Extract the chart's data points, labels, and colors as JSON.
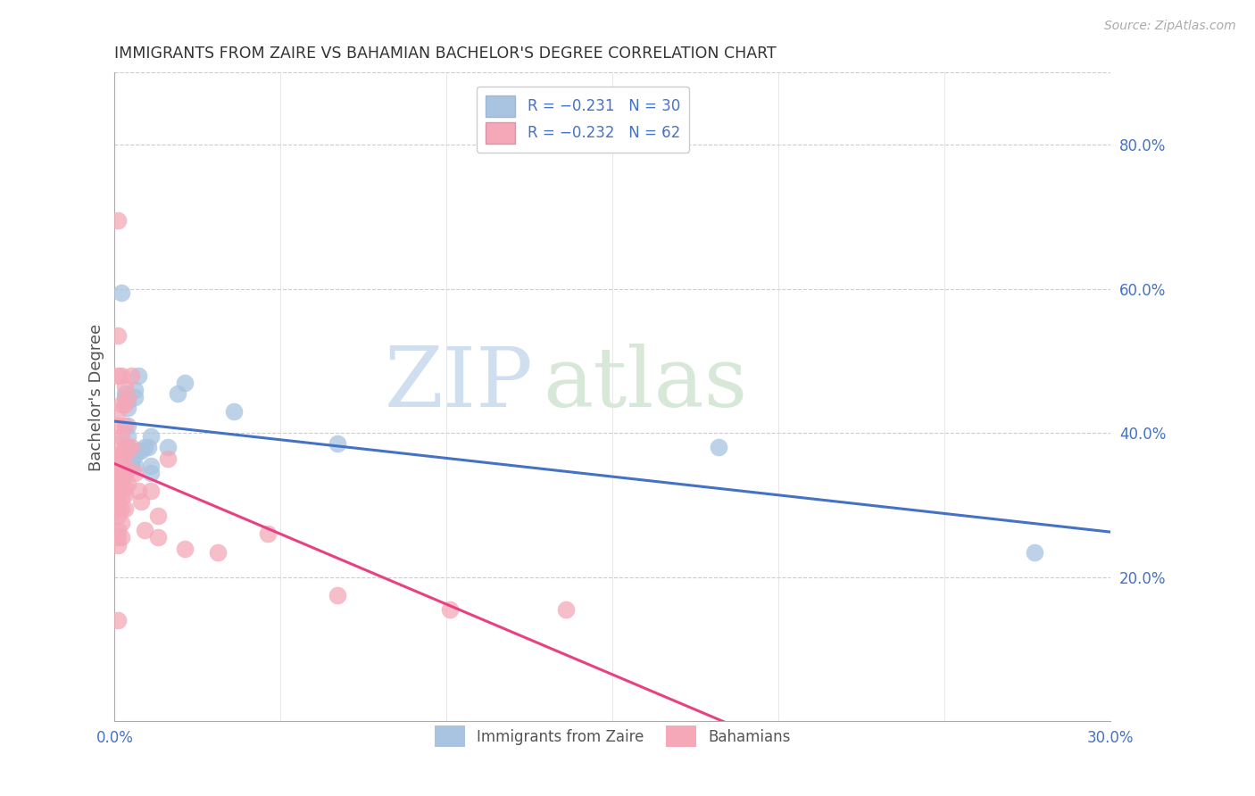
{
  "title": "IMMIGRANTS FROM ZAIRE VS BAHAMIAN BACHELOR'S DEGREE CORRELATION CHART",
  "source": "Source: ZipAtlas.com",
  "ylabel": "Bachelor's Degree",
  "right_yticks": [
    20.0,
    40.0,
    60.0,
    80.0
  ],
  "legend_blue_label": "R = -0.231   N = 30",
  "legend_pink_label": "R = -0.232   N = 62",
  "legend_series_blue": "Immigrants from Zaire",
  "legend_series_pink": "Bahamians",
  "blue_color": "#A8C4E0",
  "pink_color": "#F4A8B8",
  "blue_line_color": "#4472C4",
  "pink_line_color": "#E84080",
  "blue_scatter": [
    [
      0.002,
      59.5
    ],
    [
      0.003,
      45.5
    ],
    [
      0.003,
      45.0
    ],
    [
      0.004,
      44.5
    ],
    [
      0.004,
      43.5
    ],
    [
      0.004,
      41.0
    ],
    [
      0.004,
      39.5
    ],
    [
      0.005,
      37.5
    ],
    [
      0.005,
      37.0
    ],
    [
      0.005,
      36.0
    ],
    [
      0.005,
      35.5
    ],
    [
      0.006,
      46.0
    ],
    [
      0.006,
      45.0
    ],
    [
      0.006,
      37.0
    ],
    [
      0.006,
      35.5
    ],
    [
      0.007,
      48.0
    ],
    [
      0.007,
      37.5
    ],
    [
      0.008,
      37.5
    ],
    [
      0.009,
      38.0
    ],
    [
      0.01,
      38.0
    ],
    [
      0.011,
      39.5
    ],
    [
      0.011,
      35.5
    ],
    [
      0.011,
      34.5
    ],
    [
      0.016,
      38.0
    ],
    [
      0.019,
      45.5
    ],
    [
      0.021,
      47.0
    ],
    [
      0.036,
      43.0
    ],
    [
      0.067,
      38.5
    ],
    [
      0.182,
      38.0
    ],
    [
      0.277,
      23.5
    ]
  ],
  "pink_scatter": [
    [
      0.001,
      69.5
    ],
    [
      0.001,
      53.5
    ],
    [
      0.001,
      48.0
    ],
    [
      0.001,
      43.0
    ],
    [
      0.001,
      41.0
    ],
    [
      0.001,
      38.5
    ],
    [
      0.001,
      37.0
    ],
    [
      0.001,
      36.5
    ],
    [
      0.001,
      35.5
    ],
    [
      0.001,
      35.0
    ],
    [
      0.001,
      34.0
    ],
    [
      0.001,
      33.5
    ],
    [
      0.001,
      33.0
    ],
    [
      0.001,
      32.0
    ],
    [
      0.001,
      31.5
    ],
    [
      0.001,
      30.5
    ],
    [
      0.001,
      29.5
    ],
    [
      0.001,
      28.5
    ],
    [
      0.001,
      26.5
    ],
    [
      0.001,
      25.5
    ],
    [
      0.001,
      24.5
    ],
    [
      0.001,
      14.0
    ],
    [
      0.002,
      48.0
    ],
    [
      0.002,
      44.0
    ],
    [
      0.002,
      39.5
    ],
    [
      0.002,
      36.5
    ],
    [
      0.002,
      35.0
    ],
    [
      0.002,
      33.5
    ],
    [
      0.002,
      32.5
    ],
    [
      0.002,
      31.0
    ],
    [
      0.002,
      29.5
    ],
    [
      0.002,
      27.5
    ],
    [
      0.002,
      25.5
    ],
    [
      0.003,
      46.5
    ],
    [
      0.003,
      44.0
    ],
    [
      0.003,
      41.0
    ],
    [
      0.003,
      38.0
    ],
    [
      0.003,
      37.0
    ],
    [
      0.003,
      34.5
    ],
    [
      0.003,
      32.5
    ],
    [
      0.003,
      31.5
    ],
    [
      0.003,
      29.5
    ],
    [
      0.004,
      45.0
    ],
    [
      0.004,
      38.0
    ],
    [
      0.004,
      35.0
    ],
    [
      0.004,
      33.0
    ],
    [
      0.005,
      48.0
    ],
    [
      0.005,
      38.0
    ],
    [
      0.006,
      34.5
    ],
    [
      0.007,
      32.0
    ],
    [
      0.008,
      30.5
    ],
    [
      0.009,
      26.5
    ],
    [
      0.011,
      32.0
    ],
    [
      0.013,
      28.5
    ],
    [
      0.013,
      25.5
    ],
    [
      0.016,
      36.5
    ],
    [
      0.021,
      24.0
    ],
    [
      0.031,
      23.5
    ],
    [
      0.046,
      26.0
    ],
    [
      0.067,
      17.5
    ],
    [
      0.101,
      15.5
    ],
    [
      0.136,
      15.5
    ]
  ],
  "xlim": [
    0.0,
    0.3
  ],
  "ylim": [
    0.0,
    90.0
  ],
  "xticks": [
    0.0,
    0.05,
    0.1,
    0.15,
    0.2,
    0.25,
    0.3
  ],
  "right_ytick_values": [
    20.0,
    40.0,
    60.0,
    80.0
  ],
  "background_color": "#FFFFFF",
  "grid_color": "#CCCCCC",
  "watermark_zip_color": "#D8E4F0",
  "watermark_atlas_color": "#D8E4F0"
}
